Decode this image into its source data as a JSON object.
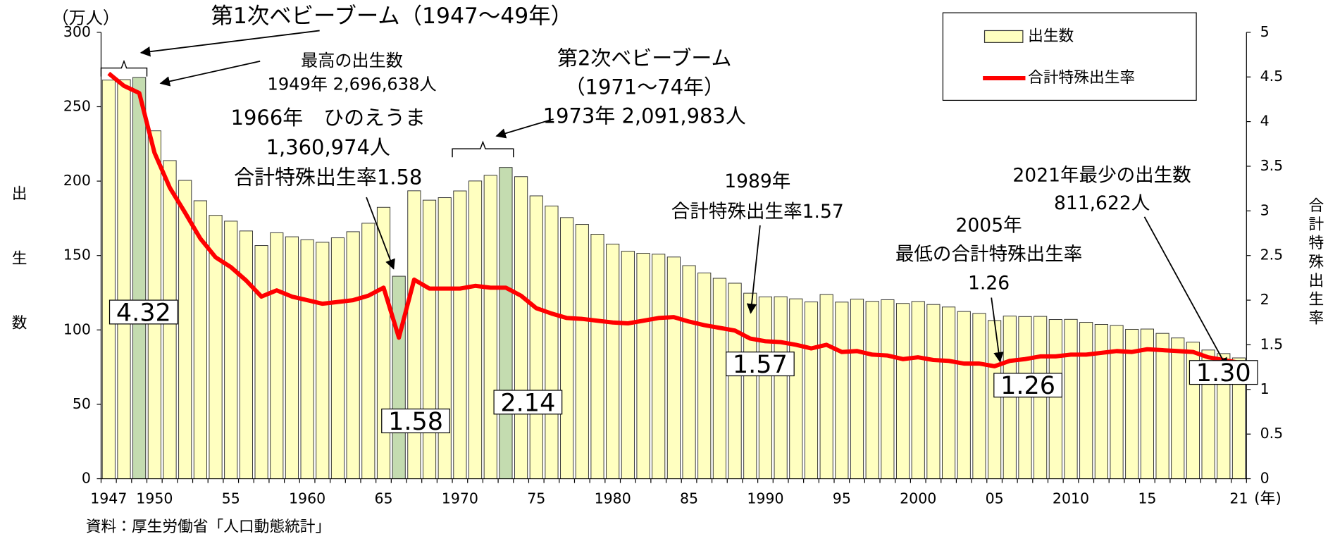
{
  "chart_data": {
    "type": "bar_line",
    "y_axis_unit": "（万人）",
    "y_axis_title": "出生数",
    "y2_axis_title": "合計特殊出生率",
    "x_axis_unit": "(年)",
    "source": "資料：厚生労働省「人口動態統計」",
    "categories": [
      "1947",
      null,
      null,
      "1950",
      null,
      null,
      null,
      null,
      "55",
      null,
      null,
      null,
      null,
      "1960",
      null,
      null,
      null,
      null,
      "65",
      null,
      null,
      null,
      null,
      "1970",
      null,
      null,
      null,
      null,
      "75",
      null,
      null,
      null,
      null,
      "1980",
      null,
      null,
      null,
      null,
      "85",
      null,
      null,
      null,
      null,
      "1990",
      null,
      null,
      null,
      null,
      "95",
      null,
      null,
      null,
      null,
      "2000",
      null,
      null,
      null,
      null,
      "05",
      null,
      null,
      null,
      null,
      "2010",
      null,
      null,
      null,
      null,
      "15",
      null,
      null,
      null,
      null,
      null,
      "21"
    ],
    "series": [
      {
        "name": "出生数",
        "type": "bar",
        "color": "#ffffc0",
        "colors": [
          "#ffffc0",
          "#ffffc0",
          "#c4dcb0",
          "#ffffc0",
          "#ffffc0",
          "#ffffc0",
          "#ffffc0",
          "#ffffc0",
          "#ffffc0",
          "#ffffc0",
          "#ffffc0",
          "#ffffc0",
          "#ffffc0",
          "#ffffc0",
          "#ffffc0",
          "#ffffc0",
          "#ffffc0",
          "#ffffc0",
          "#ffffc0",
          "#c4dcb0",
          "#ffffc0",
          "#ffffc0",
          "#ffffc0",
          "#ffffc0",
          "#ffffc0",
          "#ffffc0",
          "#c4dcb0",
          "#ffffc0",
          "#ffffc0",
          "#ffffc0",
          "#ffffc0",
          "#ffffc0",
          "#ffffc0",
          "#ffffc0",
          "#ffffc0",
          "#ffffc0",
          "#ffffc0",
          "#ffffc0",
          "#ffffc0",
          "#ffffc0",
          "#ffffc0",
          "#ffffc0",
          "#ffffc0",
          "#ffffc0",
          "#ffffc0",
          "#ffffc0",
          "#ffffc0",
          "#ffffc0",
          "#ffffc0",
          "#ffffc0",
          "#ffffc0",
          "#ffffc0",
          "#ffffc0",
          "#ffffc0",
          "#ffffc0",
          "#ffffc0",
          "#ffffc0",
          "#ffffc0",
          "#ffffc0",
          "#ffffc0",
          "#ffffc0",
          "#ffffc0",
          "#ffffc0",
          "#ffffc0",
          "#ffffc0",
          "#ffffc0",
          "#ffffc0",
          "#ffffc0",
          "#ffffc0",
          "#ffffc0",
          "#ffffc0",
          "#ffffc0",
          "#ffffc0",
          "#ffffc0",
          "#ffffc0"
        ],
        "values": [
          267.9,
          268.2,
          269.7,
          233.8,
          213.8,
          200.5,
          186.8,
          177.0,
          173.1,
          166.5,
          156.7,
          165.3,
          162.6,
          160.6,
          158.9,
          161.9,
          166.0,
          171.7,
          182.4,
          136.1,
          193.5,
          187.2,
          188.9,
          193.4,
          200.1,
          203.9,
          209.2,
          203.0,
          190.1,
          183.3,
          175.5,
          170.9,
          164.3,
          157.7,
          152.9,
          151.5,
          150.9,
          149.0,
          143.2,
          138.3,
          134.7,
          131.4,
          124.7,
          122.2,
          122.3,
          120.9,
          118.8,
          123.8,
          118.7,
          120.7,
          119.2,
          120.3,
          117.8,
          119.1,
          117.1,
          115.4,
          112.4,
          111.1,
          106.3,
          109.3,
          109.0,
          109.1,
          107.0,
          107.1,
          105.1,
          103.7,
          103.0,
          100.4,
          100.6,
          97.7,
          94.6,
          91.8,
          86.5,
          84.1,
          81.2
        ]
      },
      {
        "name": "合計特殊出生率",
        "type": "line",
        "color": "#ff0000",
        "axis": "y2",
        "values": [
          4.54,
          4.4,
          4.32,
          3.65,
          3.26,
          2.98,
          2.69,
          2.48,
          2.37,
          2.22,
          2.04,
          2.11,
          2.04,
          2.0,
          1.96,
          1.98,
          2.0,
          2.05,
          2.14,
          1.58,
          2.23,
          2.13,
          2.13,
          2.13,
          2.16,
          2.14,
          2.14,
          2.05,
          1.91,
          1.85,
          1.8,
          1.79,
          1.77,
          1.75,
          1.74,
          1.77,
          1.8,
          1.81,
          1.76,
          1.72,
          1.69,
          1.66,
          1.57,
          1.54,
          1.53,
          1.5,
          1.46,
          1.5,
          1.42,
          1.43,
          1.39,
          1.38,
          1.34,
          1.36,
          1.33,
          1.32,
          1.29,
          1.29,
          1.26,
          1.32,
          1.34,
          1.37,
          1.37,
          1.39,
          1.39,
          1.41,
          1.43,
          1.42,
          1.45,
          1.44,
          1.43,
          1.42,
          1.36,
          1.33,
          1.3
        ],
        "value_labels": [
          null,
          null,
          "4.32",
          null,
          null,
          null,
          null,
          null,
          null,
          null,
          null,
          null,
          null,
          null,
          null,
          null,
          null,
          null,
          null,
          "1.58",
          null,
          null,
          null,
          null,
          null,
          null,
          "2.14",
          null,
          null,
          null,
          null,
          null,
          null,
          null,
          null,
          null,
          null,
          null,
          null,
          null,
          null,
          null,
          "1.57",
          null,
          null,
          null,
          null,
          null,
          null,
          null,
          null,
          null,
          null,
          null,
          null,
          null,
          null,
          null,
          "1.26",
          null,
          null,
          null,
          null,
          null,
          null,
          null,
          null,
          null,
          null,
          null,
          null,
          null,
          null,
          null,
          "1.30"
        ]
      }
    ],
    "ylim": [
      0,
      300
    ],
    "yticks": [
      0,
      50,
      100,
      150,
      200,
      250,
      300
    ],
    "y2lim": [
      0,
      5
    ],
    "y2ticks": [
      0,
      0.5,
      1,
      1.5,
      2,
      2.5,
      3,
      3.5,
      4,
      4.5,
      5
    ],
    "legend": "top-right",
    "annotations": [
      {
        "lines": [
          "第1次ベビーブーム（1947〜49年）"
        ]
      },
      {
        "lines": [
          "最高の出生数",
          "1949年 2,696,638人"
        ]
      },
      {
        "lines": [
          "1966年　ひのえうま",
          "1,360,974人",
          "合計特殊出生率1.58"
        ]
      },
      {
        "lines": [
          "第2次ベビーブーム",
          "（1971〜74年）",
          "1973年 2,091,983人"
        ]
      },
      {
        "lines": [
          "1989年",
          "合計特殊出生率1.57"
        ]
      },
      {
        "lines": [
          "2005年",
          "最低の合計特殊出生率",
          "1.26"
        ]
      },
      {
        "lines": [
          "2021年最少の出生数",
          "811,622人"
        ]
      }
    ]
  }
}
